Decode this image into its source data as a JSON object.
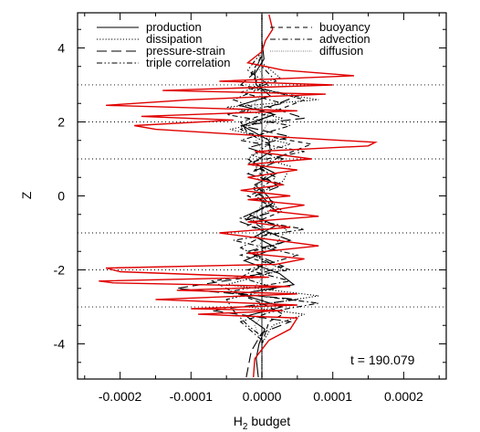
{
  "chart_data": {
    "type": "line",
    "title": "",
    "xlabel": "H",
    "xlabel_sub": "2",
    "xlabel_rest": " budget",
    "ylabel": "Z",
    "xlim": [
      -0.00026,
      0.00026
    ],
    "ylim": [
      -4.95,
      4.95
    ],
    "xticks": [
      -0.0002,
      -0.0001,
      0.0,
      0.0001,
      0.0002
    ],
    "xtick_labels": [
      "-0.0002",
      "-0.0001",
      "0.0000",
      "0.0001",
      "0.0002"
    ],
    "yticks": [
      -4,
      -2,
      0,
      2,
      4
    ],
    "ytick_labels": [
      "-4",
      "-2",
      "0",
      "2",
      "4"
    ],
    "reference_lines": {
      "z": [
        3,
        2,
        1,
        -1,
        -2,
        -3
      ],
      "x": 0
    },
    "annotation": "t = 190.079",
    "grid": false,
    "series": [
      {
        "name": "production",
        "style": "solid",
        "color": "#000000",
        "points": [
          [
            -5e-06,
            -4.9
          ],
          [
            -8e-06,
            -4.4
          ],
          [
            -4e-06,
            -4.0
          ],
          [
            4e-06,
            -3.6
          ],
          [
            -2.2e-05,
            -3.25
          ],
          [
            2.8e-05,
            -3.0
          ],
          [
            -3.1e-05,
            -2.65
          ],
          [
            4.5e-05,
            -2.4
          ],
          [
            2.5e-05,
            -2.1
          ],
          [
            -2.5e-05,
            -1.75
          ],
          [
            2e-05,
            -1.4
          ],
          [
            -1e-05,
            -1.1
          ],
          [
            2e-05,
            -0.8
          ],
          [
            -1.8e-05,
            -0.5
          ],
          [
            1.5e-05,
            -0.2
          ],
          [
            8e-06,
            0.0
          ],
          [
            -1e-05,
            0.3
          ],
          [
            2e-05,
            0.6
          ],
          [
            -1.2e-05,
            0.9
          ],
          [
            1.2e-05,
            1.2
          ],
          [
            1e-05,
            1.5
          ],
          [
            -2.8e-05,
            1.9
          ],
          [
            1.8e-05,
            2.2
          ],
          [
            -3.2e-05,
            2.45
          ],
          [
            1.2e-05,
            2.7
          ],
          [
            -8e-06,
            3.0
          ],
          [
            -1e-05,
            3.3
          ],
          [
            3e-06,
            3.7
          ],
          [
            0.0,
            4.2
          ],
          [
            0.0,
            4.9
          ]
        ]
      },
      {
        "name": "dissipation",
        "style": "dotted",
        "color": "#000000",
        "points": [
          [
            0.0,
            -4.9
          ],
          [
            0.0,
            -4.0
          ],
          [
            1.5e-05,
            -3.5
          ],
          [
            6e-05,
            -3.2
          ],
          [
            -2e-05,
            -3.0
          ],
          [
            8e-05,
            -2.7
          ],
          [
            -5e-05,
            -2.4
          ],
          [
            3e-05,
            -2.0
          ],
          [
            -1.2e-05,
            -1.6
          ],
          [
            2e-05,
            -1.3
          ],
          [
            3.5e-05,
            -0.9
          ],
          [
            -1e-05,
            -0.6
          ],
          [
            2e-05,
            -0.3
          ],
          [
            -1e-05,
            0.0
          ],
          [
            3e-05,
            0.4
          ],
          [
            4e-05,
            0.8
          ],
          [
            -1.5e-05,
            1.1
          ],
          [
            4e-05,
            1.4
          ],
          [
            -4.5e-05,
            1.8
          ],
          [
            3e-05,
            2.1
          ],
          [
            -5e-05,
            2.4
          ],
          [
            8e-05,
            2.6
          ],
          [
            -2e-05,
            2.9
          ],
          [
            2.5e-05,
            3.2
          ],
          [
            0.0,
            3.6
          ],
          [
            0.0,
            4.3
          ],
          [
            0.0,
            4.9
          ]
        ]
      },
      {
        "name": "pressure-strain",
        "style": "longdash",
        "color": "#000000",
        "points": [
          [
            -2.2e-05,
            -4.9
          ],
          [
            -1.5e-05,
            -4.2
          ],
          [
            0.0,
            -3.7
          ],
          [
            4e-05,
            -3.4
          ],
          [
            -7e-05,
            -3.1
          ],
          [
            5e-05,
            -2.8
          ],
          [
            -0.00012,
            -2.5
          ],
          [
            -2e-05,
            -2.2
          ],
          [
            3e-05,
            -1.9
          ],
          [
            -2e-05,
            -1.5
          ],
          [
            4e-05,
            -1.2
          ],
          [
            -3e-05,
            -0.7
          ],
          [
            2e-05,
            -0.4
          ],
          [
            -1e-05,
            0.0
          ],
          [
            3e-05,
            0.3
          ],
          [
            -2e-05,
            0.6
          ],
          [
            3e-05,
            1.0
          ],
          [
            -2e-05,
            1.3
          ],
          [
            4e-05,
            1.6
          ],
          [
            -3e-05,
            1.9
          ],
          [
            6e-05,
            2.1
          ],
          [
            1e-05,
            2.4
          ],
          [
            5e-05,
            2.7
          ],
          [
            -3e-05,
            3.0
          ],
          [
            -1.2e-05,
            3.3
          ],
          [
            0.0,
            3.8
          ],
          [
            0.0,
            4.9
          ]
        ]
      },
      {
        "name": "triple correlation",
        "style": "dashdotdot",
        "color": "#000000",
        "points": [
          [
            0.0,
            -4.9
          ],
          [
            0.0,
            -3.8
          ],
          [
            -2e-05,
            -3.5
          ],
          [
            -4e-05,
            -3.1
          ],
          [
            -5e-05,
            -2.8
          ],
          [
            2e-05,
            -2.5
          ],
          [
            -3e-05,
            -2.2
          ],
          [
            1e-05,
            -1.8
          ],
          [
            -3e-05,
            -1.4
          ],
          [
            1e-05,
            -1.0
          ],
          [
            -2e-05,
            -0.6
          ],
          [
            1e-05,
            -0.2
          ],
          [
            -1.2e-05,
            0.2
          ],
          [
            1e-05,
            0.6
          ],
          [
            -2e-05,
            1.0
          ],
          [
            1e-05,
            1.4
          ],
          [
            -3e-05,
            1.8
          ],
          [
            1.5e-05,
            2.2
          ],
          [
            -4e-05,
            2.6
          ],
          [
            1e-05,
            3.0
          ],
          [
            -2e-05,
            3.4
          ],
          [
            0.0,
            3.9
          ],
          [
            0.0,
            4.9
          ]
        ]
      },
      {
        "name": "buoyancy",
        "style": "dashed",
        "color": "#000000",
        "points": [
          [
            0.0,
            -4.9
          ],
          [
            0.0,
            -4.0
          ],
          [
            1e-05,
            -3.4
          ],
          [
            3e-05,
            -3.2
          ],
          [
            0.0,
            -2.9
          ],
          [
            -4e-05,
            -2.6
          ],
          [
            -7e-05,
            -2.3
          ],
          [
            4e-05,
            -2.0
          ],
          [
            -3e-05,
            -1.6
          ],
          [
            4e-05,
            -1.2
          ],
          [
            -2e-05,
            -0.8
          ],
          [
            3e-05,
            -0.4
          ],
          [
            -2e-05,
            0.0
          ],
          [
            2e-05,
            0.3
          ],
          [
            -1e-05,
            0.7
          ],
          [
            3e-05,
            1.1
          ],
          [
            7e-05,
            1.4
          ],
          [
            -2e-05,
            1.7
          ],
          [
            -3e-05,
            2.0
          ],
          [
            2e-05,
            2.3
          ],
          [
            6e-05,
            2.6
          ],
          [
            0.0,
            2.9
          ],
          [
            -1.5e-05,
            3.3
          ],
          [
            0.0,
            3.8
          ],
          [
            0.0,
            4.9
          ]
        ]
      },
      {
        "name": "advection",
        "style": "dashdot",
        "color": "#000000",
        "points": [
          [
            0.0,
            -4.9
          ],
          [
            0.0,
            -3.9
          ],
          [
            -3e-05,
            -3.4
          ],
          [
            2e-05,
            -3.1
          ],
          [
            8e-05,
            -2.9
          ],
          [
            -5e-05,
            -2.6
          ],
          [
            4e-05,
            -2.3
          ],
          [
            -2e-05,
            -2.0
          ],
          [
            5e-05,
            -1.6
          ],
          [
            -4e-05,
            -1.2
          ],
          [
            6e-05,
            -0.9
          ],
          [
            -3e-05,
            -0.6
          ],
          [
            2e-05,
            -0.2
          ],
          [
            -1e-05,
            0.1
          ],
          [
            2e-05,
            0.5
          ],
          [
            -2e-05,
            0.9
          ],
          [
            6e-05,
            1.2
          ],
          [
            -3e-05,
            1.5
          ],
          [
            4e-05,
            1.9
          ],
          [
            -5e-05,
            2.2
          ],
          [
            3e-05,
            2.5
          ],
          [
            -3e-05,
            2.8
          ],
          [
            2e-05,
            3.1
          ],
          [
            0.0,
            3.5
          ],
          [
            0.0,
            4.9
          ]
        ]
      },
      {
        "name": "diffusion",
        "style": "finedot",
        "color": "#555555",
        "points": [
          [
            0.0,
            -4.9
          ],
          [
            0.0,
            -4.0
          ],
          [
            -1e-05,
            -3.5
          ],
          [
            1e-05,
            -3.0
          ],
          [
            -1.2e-05,
            -2.5
          ],
          [
            1e-05,
            -2.0
          ],
          [
            -1e-05,
            -1.5
          ],
          [
            8e-06,
            -1.0
          ],
          [
            -8e-06,
            -0.5
          ],
          [
            6e-06,
            0.0
          ],
          [
            -6e-06,
            0.5
          ],
          [
            8e-06,
            1.0
          ],
          [
            -8e-06,
            1.5
          ],
          [
            1e-05,
            2.0
          ],
          [
            -1e-05,
            2.5
          ],
          [
            8e-06,
            3.0
          ],
          [
            -6e-06,
            3.5
          ],
          [
            0.0,
            4.0
          ],
          [
            0.0,
            4.9
          ]
        ]
      },
      {
        "name": "",
        "style": "solid",
        "color": "#e00000",
        "points": [
          [
            -1.2e-05,
            -4.9
          ],
          [
            -1e-05,
            -4.4
          ],
          [
            1e-05,
            -3.9
          ],
          [
            4e-05,
            -3.6
          ],
          [
            5e-05,
            -3.3
          ],
          [
            -9e-05,
            -3.2
          ],
          [
            3e-05,
            -3.1
          ],
          [
            -0.0001,
            -3.05
          ],
          [
            5e-05,
            -2.95
          ],
          [
            -0.00015,
            -2.8
          ],
          [
            5e-05,
            -2.65
          ],
          [
            -0.00012,
            -2.55
          ],
          [
            4e-05,
            -2.45
          ],
          [
            -0.00021,
            -2.35
          ],
          [
            -0.00023,
            -2.3
          ],
          [
            1e-05,
            -2.2
          ],
          [
            -0.0002,
            -2.05
          ],
          [
            -0.00022,
            -1.95
          ],
          [
            2e-05,
            -1.85
          ],
          [
            6e-05,
            -1.7
          ],
          [
            -2e-05,
            -1.55
          ],
          [
            8e-05,
            -1.35
          ],
          [
            2e-05,
            -1.2
          ],
          [
            -6e-05,
            -1.0
          ],
          [
            4e-05,
            -0.85
          ],
          [
            -2e-05,
            -0.7
          ],
          [
            8e-05,
            -0.55
          ],
          [
            1e-05,
            -0.4
          ],
          [
            6e-05,
            -0.25
          ],
          [
            -2e-05,
            -0.1
          ],
          [
            4e-05,
            0.0
          ],
          [
            -3e-05,
            0.15
          ],
          [
            3e-05,
            0.3
          ],
          [
            -2e-05,
            0.5
          ],
          [
            5e-05,
            0.7
          ],
          [
            -2e-05,
            0.85
          ],
          [
            7e-05,
            1.0
          ],
          [
            -1e-05,
            1.2
          ],
          [
            0.00015,
            1.35
          ],
          [
            0.00016,
            1.45
          ],
          [
            2e-05,
            1.6
          ],
          [
            -0.00015,
            1.8
          ],
          [
            -0.00018,
            1.9
          ],
          [
            -4e-05,
            2.05
          ],
          [
            -0.00017,
            2.15
          ],
          [
            5e-05,
            2.3
          ],
          [
            -0.00022,
            2.45
          ],
          [
            -0.0001,
            2.6
          ],
          [
            9e-05,
            2.75
          ],
          [
            -0.00014,
            2.85
          ],
          [
            0.0001,
            3.0
          ],
          [
            -6e-05,
            3.1
          ],
          [
            0.00013,
            3.25
          ],
          [
            3e-05,
            3.4
          ],
          [
            -2e-05,
            3.6
          ],
          [
            0.0,
            3.9
          ],
          [
            5e-06,
            4.2
          ],
          [
            1.5e-05,
            4.5
          ],
          [
            1e-05,
            4.9
          ]
        ]
      }
    ]
  }
}
